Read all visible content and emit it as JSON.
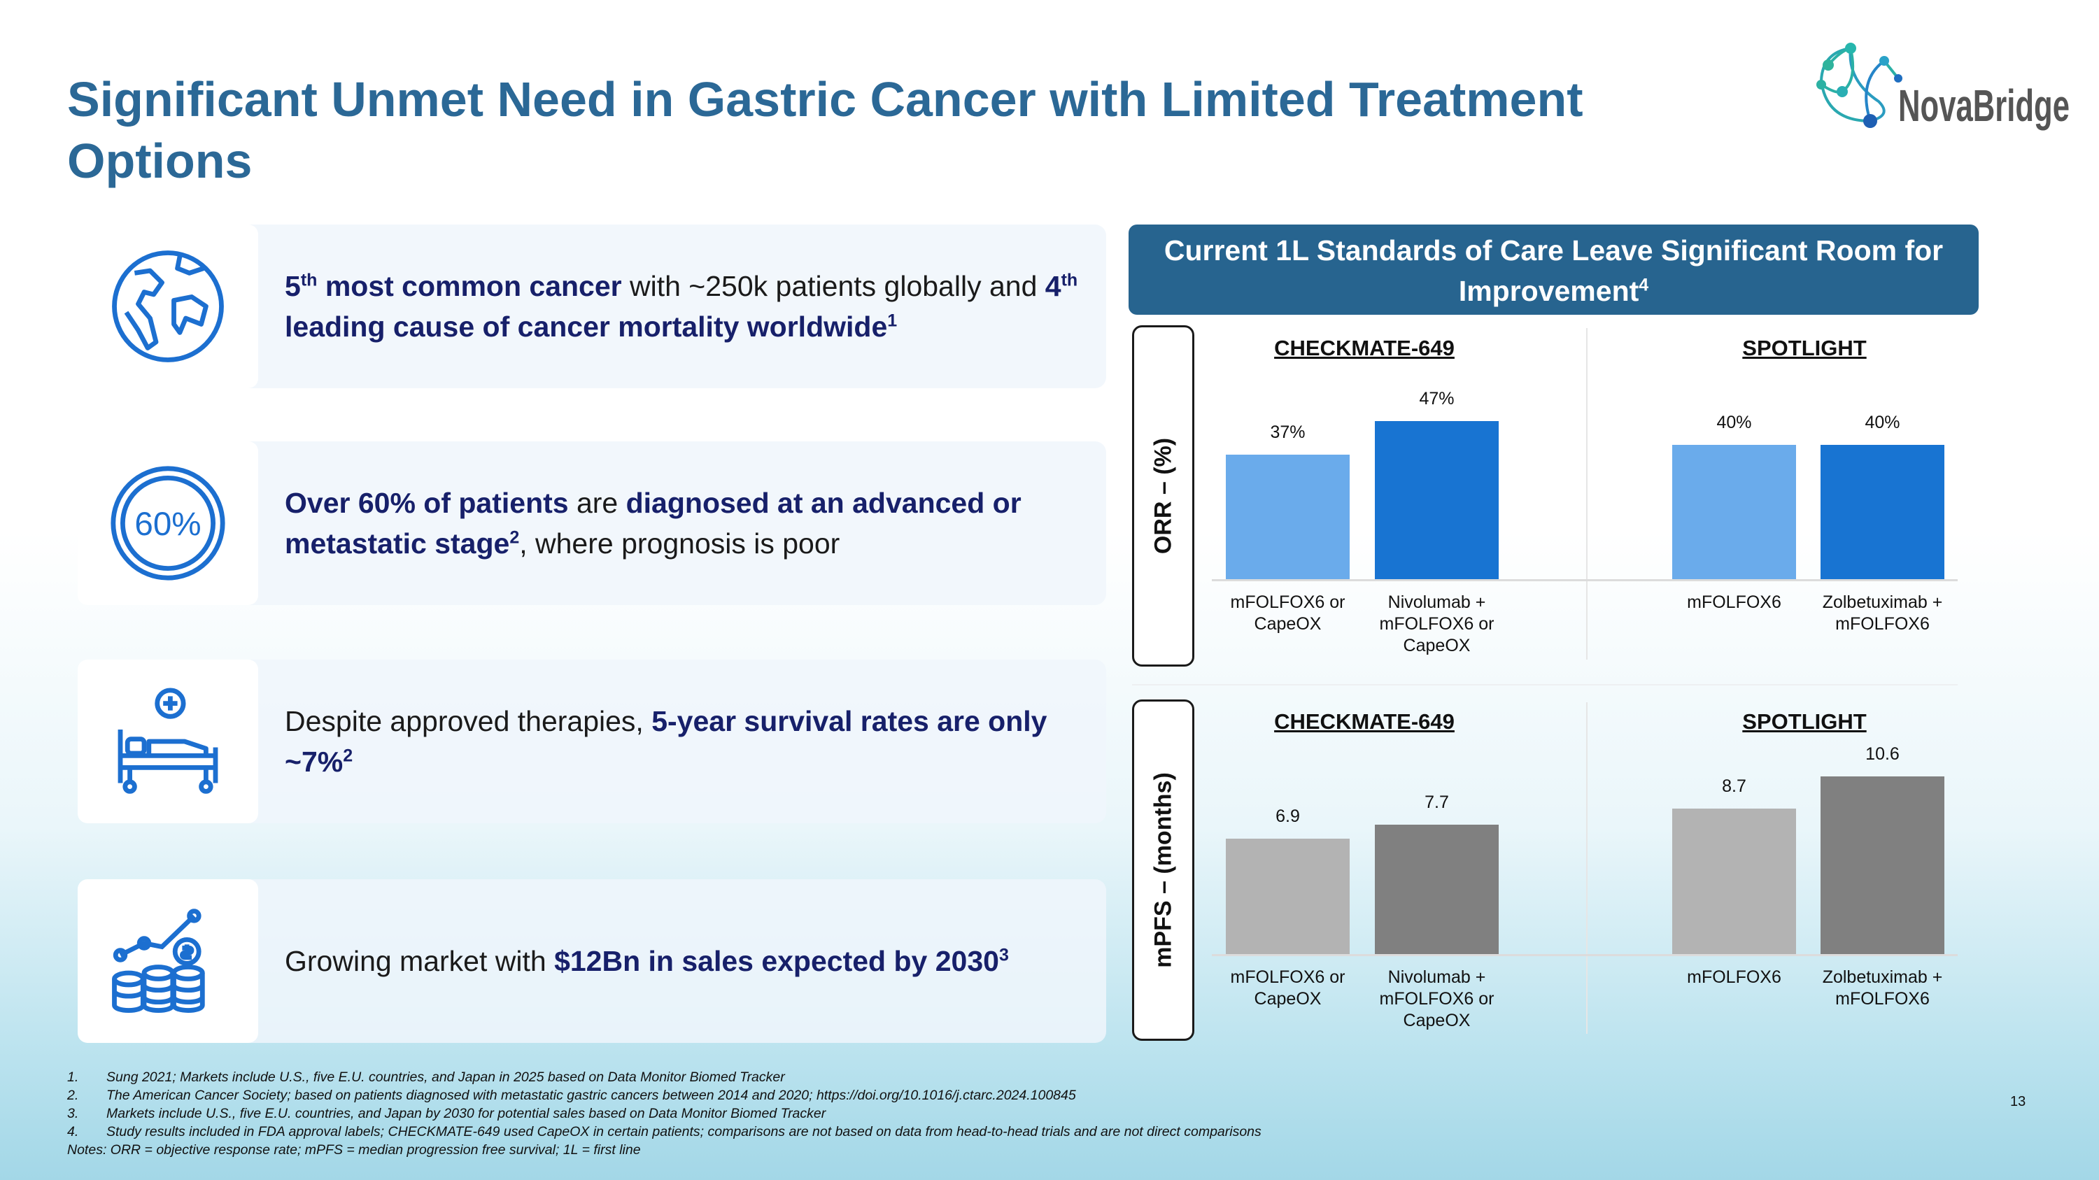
{
  "title": "Significant Unmet Need in Gastric Cancer with Limited Treatment Options",
  "logo": {
    "text": "NovaBridge",
    "colors": [
      "#2bb5a6",
      "#1e73c0"
    ]
  },
  "cards": [
    {
      "icon": "globe-icon",
      "segments": [
        {
          "t": "5",
          "b": true
        },
        {
          "t": "th",
          "b": true,
          "sup": true
        },
        {
          "t": " most common cancer",
          "b": true
        },
        {
          "t": " with ~250k patients globally and "
        },
        {
          "t": "4",
          "b": true
        },
        {
          "t": "th",
          "b": true,
          "sup": true
        },
        {
          "t": " leading cause of cancer mortality worldwide",
          "b": true
        },
        {
          "t": "1",
          "b": true,
          "sup": true
        }
      ]
    },
    {
      "icon": "percent-badge-icon",
      "icon_text": "60%",
      "segments": [
        {
          "t": "Over 60% of patients",
          "b": true
        },
        {
          "t": " are "
        },
        {
          "t": "diagnosed at an advanced or metastatic stage",
          "b": true
        },
        {
          "t": "2",
          "b": true,
          "sup": true
        },
        {
          "t": ", where prognosis is poor"
        }
      ]
    },
    {
      "icon": "hospital-bed-icon",
      "segments": [
        {
          "t": "Despite approved therapies, "
        },
        {
          "t": "5-year survival rates are only ~7%",
          "b": true
        },
        {
          "t": "2",
          "b": true,
          "sup": true
        }
      ]
    },
    {
      "icon": "coins-growth-icon",
      "segments": [
        {
          "t": "Growing market with "
        },
        {
          "t": "$12Bn in sales expected by 2030",
          "b": true
        },
        {
          "t": "3",
          "b": true,
          "sup": true
        }
      ]
    }
  ],
  "panel_header": {
    "text": "Current 1L Standards of Care Leave Significant Room for Improvement",
    "sup": "4"
  },
  "chart_data": [
    {
      "type": "bar",
      "ylabel": "ORR – (%)",
      "groups": [
        {
          "title": "CHECKMATE-649",
          "categories": [
            "mFOLFOX6 or CapeOX",
            "Nivolumab + mFOLFOX6 or CapeOX"
          ],
          "values": [
            37,
            47
          ],
          "labels": [
            "37%",
            "47%"
          ],
          "colors": [
            "#6aabeb",
            "#1874d2"
          ]
        },
        {
          "title": "SPOTLIGHT",
          "categories": [
            "mFOLFOX6",
            "Zolbetuximab + mFOLFOX6"
          ],
          "values": [
            40,
            40
          ],
          "labels": [
            "40%",
            "40%"
          ],
          "colors": [
            "#6aabeb",
            "#1874d2"
          ]
        }
      ],
      "ylim": [
        0,
        50
      ],
      "grid": false
    },
    {
      "type": "bar",
      "ylabel": "mPFS – (months)",
      "groups": [
        {
          "title": "CHECKMATE-649",
          "categories": [
            "mFOLFOX6 or CapeOX",
            "Nivolumab + mFOLFOX6 or CapeOX"
          ],
          "values": [
            6.9,
            7.7
          ],
          "labels": [
            "6.9",
            "7.7"
          ],
          "colors": [
            "#b3b3b3",
            "#808080"
          ]
        },
        {
          "title": "SPOTLIGHT",
          "categories": [
            "mFOLFOX6",
            "Zolbetuximab + mFOLFOX6"
          ],
          "values": [
            8.7,
            10.6
          ],
          "labels": [
            "8.7",
            "10.6"
          ],
          "colors": [
            "#b3b3b3",
            "#808080"
          ]
        }
      ],
      "ylim": [
        0,
        11
      ],
      "grid": false
    }
  ],
  "footnotes": [
    {
      "n": "1.",
      "t": "Sung 2021; Markets include U.S., five E.U. countries, and Japan in 2025 based on Data Monitor Biomed Tracker"
    },
    {
      "n": "2.",
      "t": "The American Cancer Society; based on patients diagnosed with metastatic gastric cancers between 2014 and 2020; https://doi.org/10.1016/j.ctarc.2024.100845"
    },
    {
      "n": "3.",
      "t": "Markets include U.S., five E.U. countries, and Japan by 2030 for potential sales based on Data Monitor Biomed Tracker"
    },
    {
      "n": "4.",
      "t": "Study results included in FDA approval labels; CHECKMATE-649 used CapeOX in certain patients; comparisons are not based on data from head-to-head trials and are not direct comparisons"
    }
  ],
  "notes": "Notes: ORR = objective response rate; mPFS = median progression free survival; 1L = first line",
  "page_number": "13"
}
